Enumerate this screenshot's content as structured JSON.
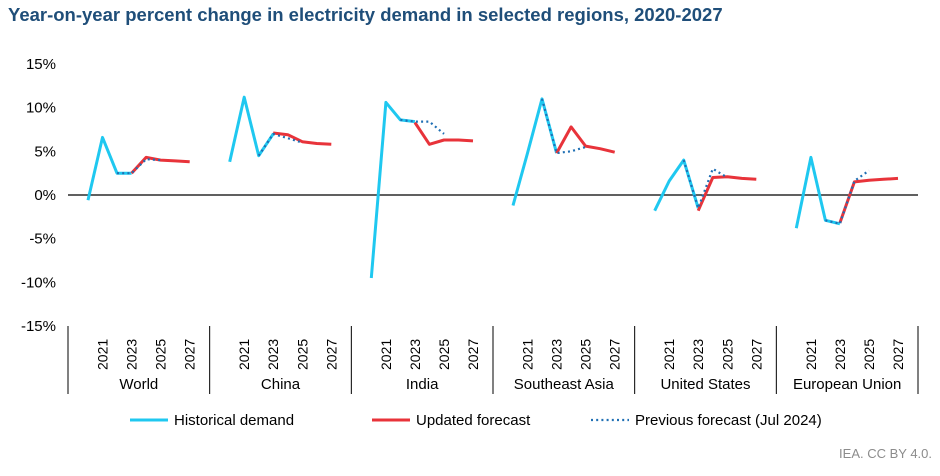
{
  "chart_data": {
    "type": "line",
    "title": "Year-on-year percent change in electricity demand in selected regions, 2020-2027",
    "xlabel": "",
    "ylabel": "",
    "ylim": [
      -15,
      15
    ],
    "y_ticks": [
      "15%",
      "10%",
      "5%",
      "0%",
      "-5%",
      "-10%",
      "-15%"
    ],
    "year_tick_labels": [
      "2021",
      "2023",
      "2025",
      "2027"
    ],
    "years": [
      2020,
      2021,
      2022,
      2023,
      2024,
      2025,
      2026,
      2027
    ],
    "groups": [
      {
        "label": "World",
        "historical": [
          [
            2020,
            -0.6
          ],
          [
            2021,
            6.6
          ],
          [
            2022,
            2.5
          ],
          [
            2023,
            2.5
          ]
        ],
        "updated": [
          [
            2023,
            2.5
          ],
          [
            2024,
            4.3
          ],
          [
            2025,
            4.0
          ],
          [
            2026,
            3.9
          ],
          [
            2027,
            3.8
          ]
        ],
        "previous": [
          [
            2022,
            2.5
          ],
          [
            2023,
            2.5
          ],
          [
            2024,
            4.1
          ],
          [
            2025,
            4.0
          ]
        ]
      },
      {
        "label": "China",
        "historical": [
          [
            2020,
            3.8
          ],
          [
            2021,
            11.2
          ],
          [
            2022,
            4.5
          ],
          [
            2023,
            7.0
          ]
        ],
        "updated": [
          [
            2023,
            7.1
          ],
          [
            2024,
            6.9
          ],
          [
            2025,
            6.1
          ],
          [
            2026,
            5.9
          ],
          [
            2027,
            5.8
          ]
        ],
        "previous": [
          [
            2022,
            4.5
          ],
          [
            2023,
            7.0
          ],
          [
            2024,
            6.5
          ],
          [
            2025,
            6.0
          ]
        ]
      },
      {
        "label": "India",
        "historical": [
          [
            2020,
            -9.5
          ],
          [
            2021,
            10.6
          ],
          [
            2022,
            8.6
          ],
          [
            2023,
            8.4
          ]
        ],
        "updated": [
          [
            2023,
            8.3
          ],
          [
            2024,
            5.8
          ],
          [
            2025,
            6.3
          ],
          [
            2026,
            6.3
          ],
          [
            2027,
            6.2
          ]
        ],
        "previous": [
          [
            2022,
            8.6
          ],
          [
            2023,
            8.4
          ],
          [
            2024,
            8.4
          ],
          [
            2025,
            7.0
          ]
        ]
      },
      {
        "label": "Southeast Asia",
        "historical": [
          [
            2020,
            -1.2
          ],
          [
            2021,
            4.8
          ],
          [
            2022,
            11.0
          ],
          [
            2023,
            4.8
          ]
        ],
        "updated": [
          [
            2023,
            4.8
          ],
          [
            2024,
            7.8
          ],
          [
            2025,
            5.6
          ],
          [
            2026,
            5.3
          ],
          [
            2027,
            4.9
          ]
        ],
        "previous": [
          [
            2022,
            11.0
          ],
          [
            2023,
            4.8
          ],
          [
            2024,
            5.0
          ],
          [
            2025,
            5.5
          ]
        ]
      },
      {
        "label": "United States",
        "historical": [
          [
            2020,
            -1.8
          ],
          [
            2021,
            1.6
          ],
          [
            2022,
            4.0
          ],
          [
            2023,
            -1.5
          ]
        ],
        "updated": [
          [
            2023,
            -1.8
          ],
          [
            2024,
            2.0
          ],
          [
            2025,
            2.1
          ],
          [
            2026,
            1.9
          ],
          [
            2027,
            1.8
          ]
        ],
        "previous": [
          [
            2022,
            4.0
          ],
          [
            2023,
            -1.5
          ],
          [
            2024,
            3.0
          ],
          [
            2025,
            2.0
          ]
        ]
      },
      {
        "label": "European Union",
        "historical": [
          [
            2020,
            -3.8
          ],
          [
            2021,
            4.3
          ],
          [
            2022,
            -2.9
          ],
          [
            2023,
            -3.3
          ]
        ],
        "updated": [
          [
            2023,
            -3.2
          ],
          [
            2024,
            1.5
          ],
          [
            2025,
            1.7
          ],
          [
            2026,
            1.8
          ],
          [
            2027,
            1.9
          ]
        ],
        "previous": [
          [
            2022,
            -2.9
          ],
          [
            2023,
            -3.3
          ],
          [
            2024,
            1.6
          ],
          [
            2025,
            2.8
          ]
        ]
      }
    ],
    "series": [
      {
        "name": "Historical demand",
        "key": "historical",
        "color": "#1fc8f0",
        "style": "solid"
      },
      {
        "name": "Updated forecast",
        "key": "updated",
        "color": "#e8333a",
        "style": "solid"
      },
      {
        "name": "Previous forecast (Jul 2024)",
        "key": "previous",
        "color": "#1f6fb4",
        "style": "dotted"
      }
    ],
    "legend_position": "bottom"
  },
  "credit": "IEA. CC BY 4.0."
}
